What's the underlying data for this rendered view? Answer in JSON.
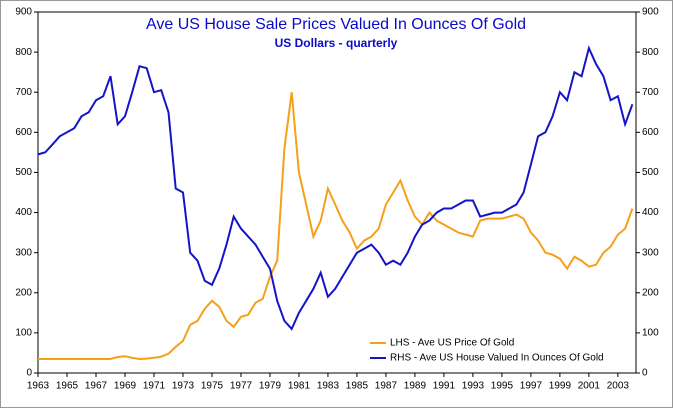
{
  "chart_data": {
    "type": "line",
    "title": "Ave US House Sale Prices Valued In Ounces Of Gold",
    "subtitle": "US Dollars - quarterly",
    "x": [
      1963,
      1963.5,
      1964,
      1964.5,
      1965,
      1965.5,
      1966,
      1966.5,
      1967,
      1967.5,
      1968,
      1968.5,
      1969,
      1969.5,
      1970,
      1970.5,
      1971,
      1971.5,
      1972,
      1972.5,
      1973,
      1973.5,
      1974,
      1974.5,
      1975,
      1975.5,
      1976,
      1976.5,
      1977,
      1977.5,
      1978,
      1978.5,
      1979,
      1979.5,
      1980,
      1980.5,
      1981,
      1981.5,
      1982,
      1982.5,
      1983,
      1983.5,
      1984,
      1984.5,
      1985,
      1985.5,
      1986,
      1986.5,
      1987,
      1987.5,
      1988,
      1988.5,
      1989,
      1989.5,
      1990,
      1990.5,
      1991,
      1991.5,
      1992,
      1992.5,
      1993,
      1993.5,
      1994,
      1994.5,
      1995,
      1995.5,
      1996,
      1996.5,
      1997,
      1997.5,
      1998,
      1998.5,
      1999,
      1999.5,
      2000,
      2000.5,
      2001,
      2001.5,
      2002,
      2002.5,
      2003,
      2003.5,
      2004
    ],
    "xlim": [
      1963,
      2004.25
    ],
    "xticks": [
      1963,
      1965,
      1967,
      1969,
      1971,
      1973,
      1975,
      1977,
      1979,
      1981,
      1983,
      1985,
      1987,
      1989,
      1991,
      1993,
      1995,
      1997,
      1999,
      2001,
      2003
    ],
    "ylim": [
      0,
      900
    ],
    "yticks": [
      0,
      100,
      200,
      300,
      400,
      500,
      600,
      700,
      800,
      900
    ],
    "y2lim": [
      0,
      900
    ],
    "y2ticks": [
      0,
      100,
      200,
      300,
      400,
      500,
      600,
      700,
      800,
      900
    ],
    "legend": "lower-right",
    "series": [
      {
        "name": "LHS - Ave US Price Of Gold",
        "color": "#f5a01a",
        "values": [
          35,
          35,
          35,
          35,
          35,
          35,
          35,
          35,
          35,
          35,
          35,
          40,
          42,
          38,
          35,
          36,
          38,
          41,
          48,
          65,
          80,
          120,
          130,
          160,
          180,
          165,
          130,
          115,
          140,
          145,
          175,
          185,
          240,
          280,
          560,
          700,
          500,
          420,
          340,
          380,
          460,
          420,
          380,
          350,
          310,
          330,
          340,
          360,
          420,
          450,
          480,
          430,
          390,
          370,
          400,
          380,
          370,
          360,
          350,
          345,
          340,
          380,
          385,
          385,
          385,
          390,
          395,
          385,
          350,
          330,
          300,
          295,
          285,
          260,
          290,
          280,
          265,
          270,
          300,
          315,
          345,
          360,
          410
        ]
      },
      {
        "name": "RHS - Ave US House Valued In Ounces Of Gold",
        "color": "#1414c8",
        "axis": "y2",
        "values": [
          545,
          550,
          570,
          590,
          600,
          610,
          640,
          650,
          680,
          690,
          740,
          620,
          640,
          700,
          765,
          760,
          700,
          705,
          650,
          460,
          450,
          300,
          280,
          230,
          220,
          260,
          320,
          390,
          360,
          340,
          320,
          290,
          260,
          180,
          130,
          110,
          150,
          180,
          210,
          250,
          190,
          210,
          240,
          270,
          300,
          310,
          320,
          300,
          270,
          280,
          270,
          300,
          340,
          370,
          380,
          400,
          410,
          410,
          420,
          430,
          430,
          390,
          395,
          400,
          400,
          410,
          420,
          450,
          520,
          590,
          600,
          640,
          700,
          680,
          750,
          740,
          810,
          770,
          740,
          680,
          690,
          620,
          670
        ]
      }
    ]
  }
}
